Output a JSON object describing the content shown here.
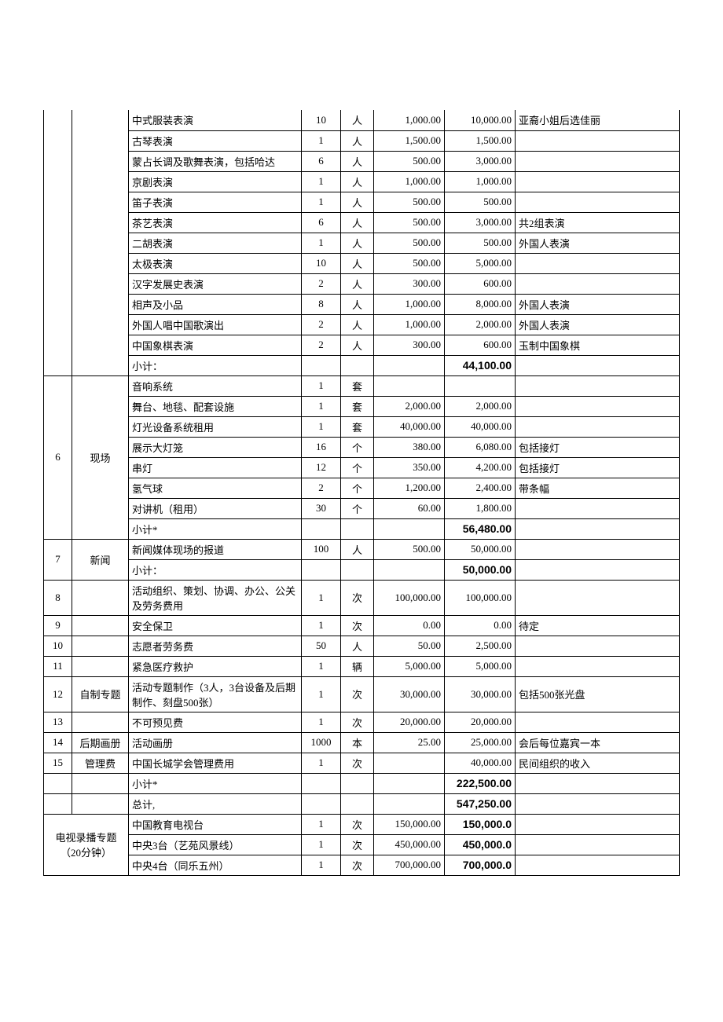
{
  "colors": {
    "border": "#000000",
    "background": "#ffffff",
    "text": "#000000"
  },
  "rows": [
    {
      "idx": "",
      "cat": "",
      "desc": "中式服装表演",
      "qty": "10",
      "unit": "人",
      "price": "1,000.00",
      "total": "10,000.00",
      "note": "亚裔小姐后选佳丽"
    },
    {
      "idx": "",
      "cat": "",
      "desc": "古琴表演",
      "qty": "1",
      "unit": "人",
      "price": "1,500.00",
      "total": "1,500.00",
      "note": ""
    },
    {
      "idx": "",
      "cat": "",
      "desc": "蒙占长调及歌舞表演，包括哈达",
      "qty": "6",
      "unit": "人",
      "price": "500.00",
      "total": "3,000.00",
      "note": ""
    },
    {
      "idx": "",
      "cat": "",
      "desc": "京剧表演",
      "qty": "1",
      "unit": "人",
      "price": "1,000.00",
      "total": "1,000.00",
      "note": ""
    },
    {
      "idx": "",
      "cat": "",
      "desc": "笛子表演",
      "qty": "1",
      "unit": "人",
      "price": "500.00",
      "total": "500.00",
      "note": ""
    },
    {
      "idx": "",
      "cat": "",
      "desc": "茶艺表演",
      "qty": "6",
      "unit": "人",
      "price": "500.00",
      "total": "3,000.00",
      "note": "共2组表演"
    },
    {
      "idx": "",
      "cat": "",
      "desc": "二胡表演",
      "qty": "1",
      "unit": "人",
      "price": "500.00",
      "total": "500.00",
      "note": "外国人表演"
    },
    {
      "idx": "",
      "cat": "",
      "desc": "太极表演",
      "qty": "10",
      "unit": "人",
      "price": "500.00",
      "total": "5,000.00",
      "note": ""
    },
    {
      "idx": "",
      "cat": "",
      "desc": "汉字发展史表演",
      "qty": "2",
      "unit": "人",
      "price": "300.00",
      "total": "600.00",
      "note": ""
    },
    {
      "idx": "",
      "cat": "",
      "desc": "相声及小品",
      "qty": "8",
      "unit": "人",
      "price": "1,000.00",
      "total": "8,000.00",
      "note": "外国人表演"
    },
    {
      "idx": "",
      "cat": "",
      "desc": "外国人唱中国歌演出",
      "qty": "2",
      "unit": "人",
      "price": "1,000.00",
      "total": "2,000.00",
      "note": "外国人表演"
    },
    {
      "idx": "",
      "cat": "",
      "desc": "中国象棋表演",
      "qty": "2",
      "unit": "人",
      "price": "300.00",
      "total": "600.00",
      "note": "玉制中国象棋"
    },
    {
      "idx": "",
      "cat": "",
      "desc": "小计：",
      "qty": "",
      "unit": "",
      "price": "",
      "total": "44,100.00",
      "note": "",
      "bold": true
    }
  ],
  "section6": {
    "idx": "6",
    "cat": "现场",
    "rows": [
      {
        "desc": "音响系统",
        "qty": "1",
        "unit": "套",
        "price": "",
        "total": "",
        "note": ""
      },
      {
        "desc": "舞台、地毯、配套设施",
        "qty": "1",
        "unit": "套",
        "price": "2,000.00",
        "total": "2,000.00",
        "note": ""
      },
      {
        "desc": "灯光设备系统租用",
        "qty": "1",
        "unit": "套",
        "price": "40,000.00",
        "total": "40,000.00",
        "note": ""
      },
      {
        "desc": "展示大灯笼",
        "qty": "16",
        "unit": "个",
        "price": "380.00",
        "total": "6,080.00",
        "note": "包括接灯"
      },
      {
        "desc": "串灯",
        "qty": "12",
        "unit": "个",
        "price": "350.00",
        "total": "4,200.00",
        "note": "包括接灯"
      },
      {
        "desc": "氢气球",
        "qty": "2",
        "unit": "个",
        "price": "1,200.00",
        "total": "2,400.00",
        "note": "带条幅"
      },
      {
        "desc": "对讲机（租用）",
        "qty": "30",
        "unit": "个",
        "price": "60.00",
        "total": "1,800.00",
        "note": ""
      },
      {
        "desc": "小计*",
        "qty": "",
        "unit": "",
        "price": "",
        "total": "56,480.00",
        "note": "",
        "bold": true
      }
    ]
  },
  "section7": {
    "idx": "7",
    "cat": "新闻",
    "rows": [
      {
        "desc": "新闻媒体现场的报道",
        "qty": "100",
        "unit": "人",
        "price": "500.00",
        "total": "50,000.00",
        "note": ""
      },
      {
        "desc": "小计：",
        "qty": "",
        "unit": "",
        "price": "",
        "total": "50,000.00",
        "note": "",
        "bold": true
      }
    ]
  },
  "simpleRows": [
    {
      "idx": "8",
      "cat": "",
      "desc": "活动组织、策划、协调、办公、公关及劳务费用",
      "qty": "1",
      "unit": "次",
      "price": "100,000.00",
      "total": "100,000.00",
      "note": ""
    },
    {
      "idx": "9",
      "cat": "",
      "desc": "安全保卫",
      "qty": "1",
      "unit": "次",
      "price": "0.00",
      "total": "0.00",
      "note": "待定"
    },
    {
      "idx": "10",
      "cat": "",
      "desc": "志愿者劳务费",
      "qty": "50",
      "unit": "人",
      "price": "50.00",
      "total": "2,500.00",
      "note": ""
    },
    {
      "idx": "11",
      "cat": "",
      "desc": "紧急医疗救护",
      "qty": "1",
      "unit": "辆",
      "price": "5,000.00",
      "total": "5,000.00",
      "note": ""
    },
    {
      "idx": "12",
      "cat": "自制专题",
      "desc": "活动专题制作（3人，3台设备及后期制作、刻盘500张）",
      "qty": "1",
      "unit": "次",
      "price": "30,000.00",
      "total": "30,000.00",
      "note": "包括500张光盘"
    },
    {
      "idx": "13",
      "cat": "",
      "desc": "不可预见费",
      "qty": "1",
      "unit": "次",
      "price": "20,000.00",
      "total": "20,000.00",
      "note": ""
    },
    {
      "idx": "14",
      "cat": "后期画册",
      "desc": "活动画册",
      "qty": "1000",
      "unit": "本",
      "price": "25.00",
      "total": "25,000.00",
      "note": "会后每位嘉宾一本"
    },
    {
      "idx": "15",
      "cat": "管理费",
      "desc": "中国长城学会管理费用",
      "qty": "1",
      "unit": "次",
      "price": "",
      "total": "40,000.00",
      "note": "民间组织的收入"
    },
    {
      "idx": "",
      "cat": "",
      "desc": "小计*",
      "qty": "",
      "unit": "",
      "price": "",
      "total": "222,500.00",
      "note": "",
      "bold": true
    },
    {
      "idx": "",
      "cat": "",
      "desc": "总计,",
      "qty": "",
      "unit": "",
      "price": "",
      "total": "547,250.00",
      "note": "",
      "bold": true
    }
  ],
  "tvSection": {
    "cat": "电视录播专题（20分钟）",
    "rows": [
      {
        "desc": "中国教育电视台",
        "qty": "1",
        "unit": "次",
        "price": "150,000.00",
        "total": "150,000.0",
        "note": "",
        "bold": true
      },
      {
        "desc": "中央3台（艺苑风景线）",
        "qty": "1",
        "unit": "次",
        "price": "450,000.00",
        "total": "450,000.0",
        "note": "",
        "bold": true
      },
      {
        "desc": "中央4台（同乐五州）",
        "qty": "1",
        "unit": "次",
        "price": "700,000.00",
        "total": "700,000.0",
        "note": "",
        "bold": true
      }
    ]
  }
}
